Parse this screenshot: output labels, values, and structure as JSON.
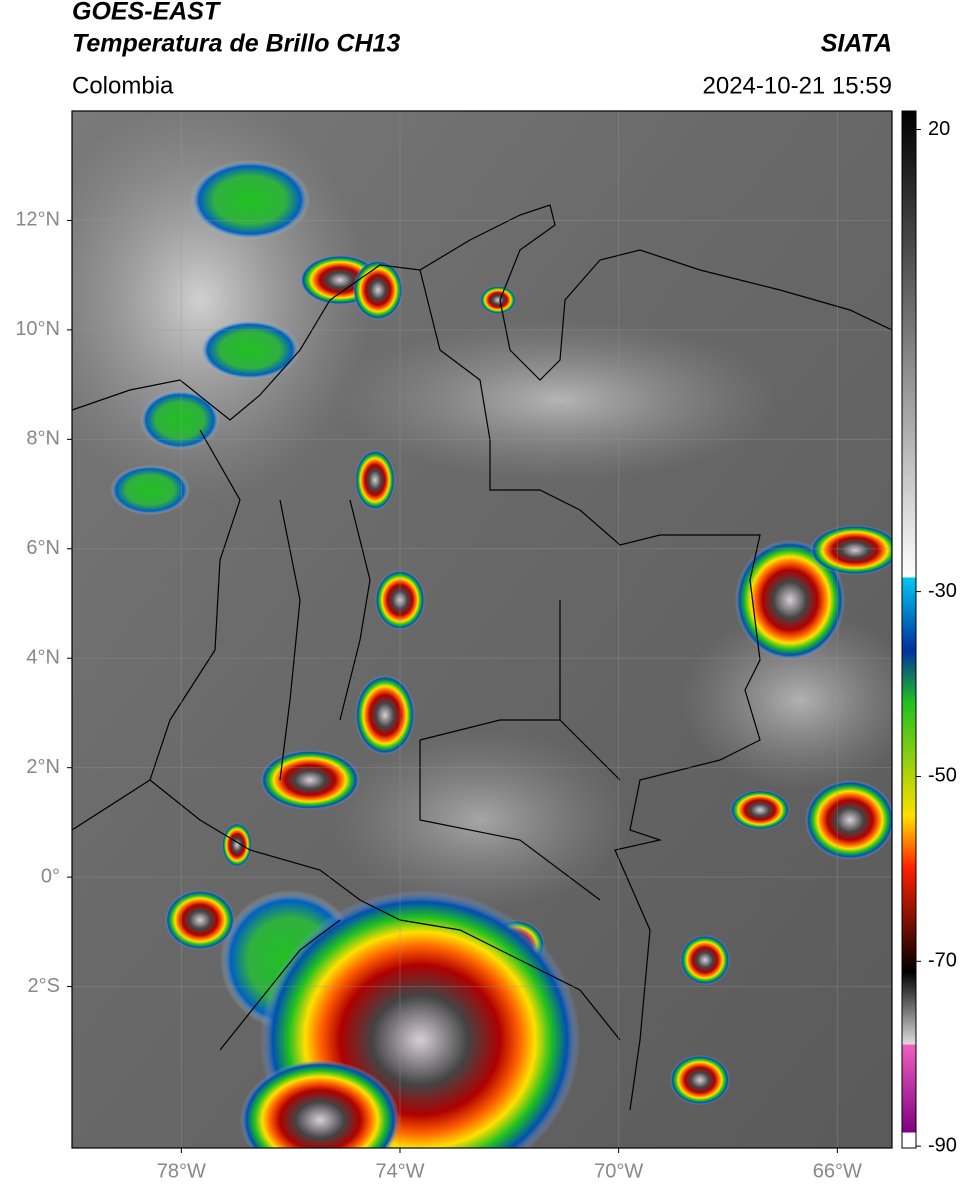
{
  "header": {
    "title": "GOES-EAST",
    "subtitle": "Temperatura de Brillo CH13",
    "source": "SIATA",
    "region": "Colombia",
    "datetime": "2024-10-21 15:59"
  },
  "map": {
    "lonlim": [
      -80,
      -65
    ],
    "latlim": [
      -4.95,
      14
    ],
    "grid": true,
    "lonticks": [
      {
        "value": -78,
        "label": "78°W"
      },
      {
        "value": -74,
        "label": "74°W"
      },
      {
        "value": -70,
        "label": "70°W"
      },
      {
        "value": -66,
        "label": "66°W"
      }
    ],
    "latticks": [
      {
        "value": 12,
        "label": "12°N"
      },
      {
        "value": 10,
        "label": "10°N"
      },
      {
        "value": 8,
        "label": "8°N"
      },
      {
        "value": 6,
        "label": "6°N"
      },
      {
        "value": 4,
        "label": "4°N"
      },
      {
        "value": 2,
        "label": "2°N"
      },
      {
        "value": 0,
        "label": "0°"
      },
      {
        "value": -2,
        "label": "2°S"
      }
    ]
  },
  "colorbar": {
    "lim": [
      -90.2,
      22
    ],
    "ticks": [
      20,
      -30,
      -50,
      -70,
      -90
    ]
  }
}
